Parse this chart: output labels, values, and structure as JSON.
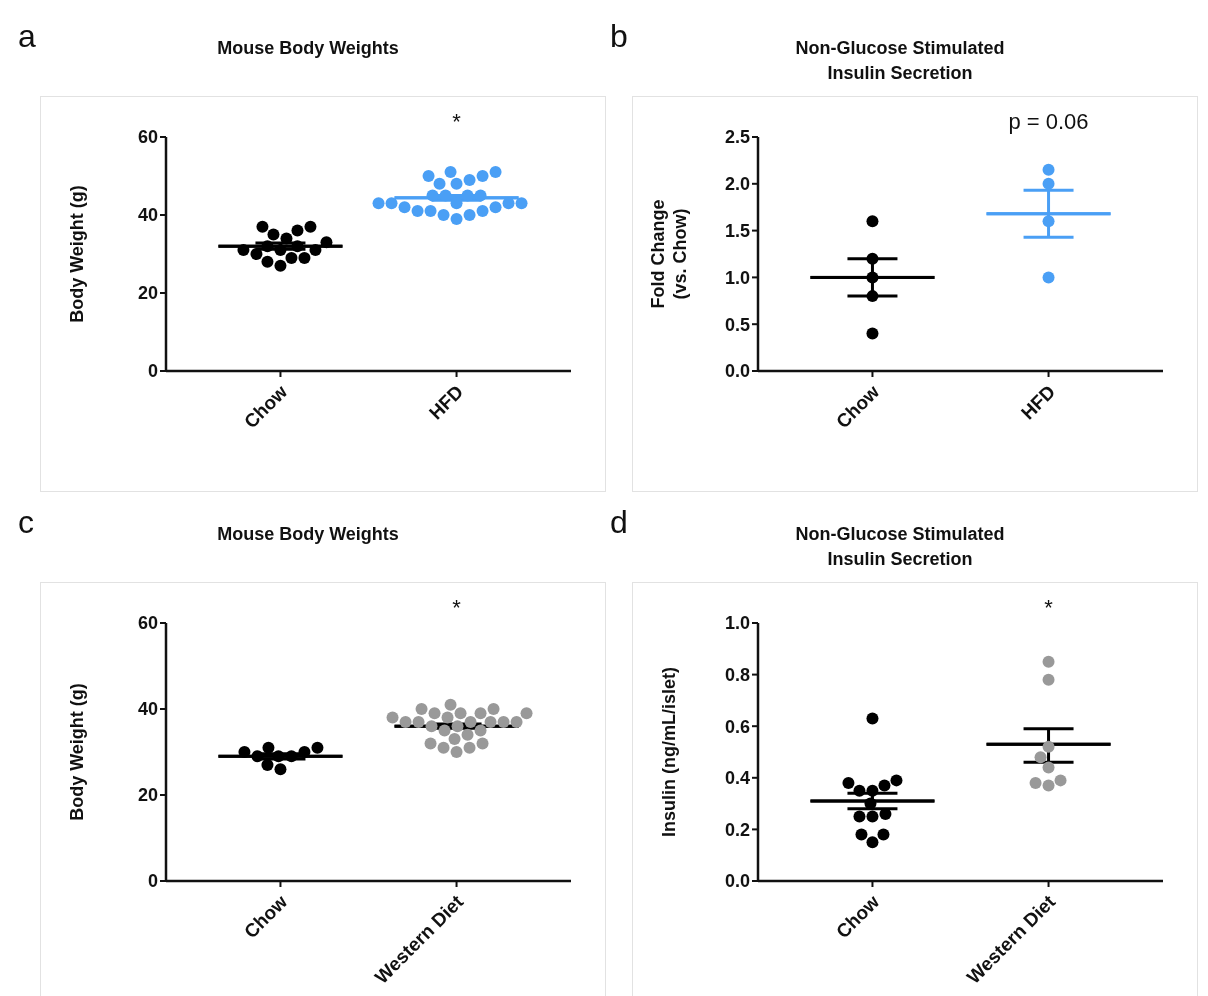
{
  "chart_data": [
    {
      "type": "scatter",
      "title": "Mouse Body Weights",
      "ylabel": "Body Weight (g)",
      "categories": [
        "Chow",
        "HFD"
      ],
      "ylim": [
        0,
        60
      ],
      "yticks": [
        0,
        20,
        40,
        60
      ],
      "series": [
        {
          "type": "box",
          "colors": [
            "#000000",
            "#4a9ff5"
          ],
          "boxes": [
            {
              "low": 31.2,
              "q1": 32,
              "median": 32,
              "q3": 32,
              "high": 32.8
            },
            {
              "low": 43.8,
              "q1": 44.4,
              "median": 44.4,
              "q3": 44.4,
              "high": 45
            }
          ]
        },
        {
          "marker": "circle",
          "color": "#000000",
          "x": [
            "Chow",
            "Chow",
            "Chow",
            "Chow",
            "Chow",
            "Chow",
            "Chow",
            "Chow",
            "Chow",
            "Chow",
            "Chow",
            "Chow",
            "Chow",
            "Chow",
            "Chow",
            "Chow"
          ],
          "values": [
            33,
            32,
            30,
            31,
            29,
            35,
            31,
            27,
            37,
            36,
            28,
            37,
            31,
            29,
            32,
            34
          ]
        },
        {
          "marker": "circle",
          "color": "#4a9ff5",
          "x": [
            "HFD",
            "HFD",
            "HFD",
            "HFD",
            "HFD",
            "HFD",
            "HFD",
            "HFD",
            "HFD",
            "HFD",
            "HFD",
            "HFD",
            "HFD",
            "HFD",
            "HFD",
            "HFD",
            "HFD",
            "HFD",
            "HFD",
            "HFD",
            "HFD",
            "HFD",
            "HFD",
            "HFD"
          ],
          "values": [
            45,
            45,
            50,
            49,
            48,
            51,
            48,
            50,
            51,
            45,
            45,
            42,
            41,
            43,
            40,
            43,
            39,
            43,
            40,
            43,
            41,
            43,
            41,
            42
          ]
        }
      ],
      "annotations": [
        "a",
        "*"
      ]
    },
    {
      "type": "scatter",
      "title": "Non-Glucose Stimulated\nInsulin Secretion",
      "ylabel": "Fold Change\n(vs. Chow)",
      "categories": [
        "Chow",
        "HFD"
      ],
      "ylim": [
        0,
        2.5
      ],
      "yticks": [
        {
          "value": 0,
          "label": "0.0"
        },
        {
          "value": 0.5,
          "label": "0.5"
        },
        {
          "value": 1,
          "label": "1.0"
        },
        {
          "value": 1.5,
          "label": "1.5"
        },
        {
          "value": 2,
          "label": "2.0"
        },
        {
          "value": 2.5,
          "label": "2.5"
        }
      ],
      "series": [
        {
          "type": "box",
          "colors": [
            "#000000",
            "#4a9ff5"
          ],
          "boxes": [
            {
              "low": 0.8,
              "q1": 1.0,
              "median": 1.0,
              "q3": 1.0,
              "high": 1.2
            },
            {
              "low": 1.43,
              "q1": 1.68,
              "median": 1.68,
              "q3": 1.68,
              "high": 1.93
            }
          ]
        },
        {
          "marker": "circle",
          "color": "#000000",
          "x": [
            "Chow",
            "Chow",
            "Chow",
            "Chow",
            "Chow"
          ],
          "values": [
            1.6,
            1.2,
            1.0,
            0.8,
            0.4
          ]
        },
        {
          "marker": "circle",
          "color": "#4a9ff5",
          "x": [
            "HFD",
            "HFD",
            "HFD",
            "HFD"
          ],
          "values": [
            2.15,
            2.0,
            1.6,
            1.0
          ]
        }
      ],
      "annotations": [
        "b",
        "p = 0.06"
      ]
    },
    {
      "type": "scatter",
      "title": "Mouse Body Weights",
      "ylabel": "Body Weight (g)",
      "categories": [
        "Chow",
        "Western Diet"
      ],
      "ylim": [
        0,
        60
      ],
      "yticks": [
        0,
        20,
        40,
        60
      ],
      "series": [
        {
          "type": "box",
          "colors": [
            "#000000",
            "#000000"
          ],
          "boxes": [
            {
              "low": 28.4,
              "q1": 29,
              "median": 29,
              "q3": 29,
              "high": 29.6
            },
            {
              "low": 35.5,
              "q1": 36,
              "median": 36,
              "q3": 36,
              "high": 36.5
            }
          ]
        },
        {
          "marker": "circle",
          "color": "#000000",
          "x": [
            "Chow",
            "Chow",
            "Chow",
            "Chow",
            "Chow",
            "Chow",
            "Chow",
            "Chow",
            "Chow"
          ],
          "values": [
            31,
            29,
            30,
            26,
            27,
            30,
            29,
            31,
            29
          ]
        },
        {
          "marker": "circle",
          "color": "#999999",
          "x": [
            "Western Diet",
            "Western Diet",
            "Western Diet",
            "Western Diet",
            "Western Diet",
            "Western Diet",
            "Western Diet",
            "Western Diet",
            "Western Diet",
            "Western Diet",
            "Western Diet",
            "Western Diet",
            "Western Diet",
            "Western Diet",
            "Western Diet",
            "Western Diet",
            "Western Diet",
            "Western Diet",
            "Western Diet",
            "Western Diet",
            "Western Diet",
            "Western Diet",
            "Western Diet",
            "Western Diet",
            "Western Diet",
            "Western Diet"
          ],
          "values": [
            41,
            40,
            39,
            39,
            38,
            38,
            39,
            39,
            40,
            37,
            37,
            37,
            37,
            37,
            37,
            36,
            35,
            34,
            35,
            36,
            32,
            31,
            30,
            31,
            32,
            33
          ]
        }
      ],
      "annotations": [
        "c",
        "*"
      ]
    },
    {
      "type": "scatter",
      "title": "Non-Glucose Stimulated\nInsulin Secretion",
      "ylabel": "Insulin (ng/mL/islet)",
      "categories": [
        "Chow",
        "Western Diet"
      ],
      "ylim": [
        0,
        1
      ],
      "yticks": [
        {
          "value": 0,
          "label": "0.0"
        },
        {
          "value": 0.2,
          "label": "0.2"
        },
        {
          "value": 0.4,
          "label": "0.4"
        },
        {
          "value": 0.6,
          "label": "0.6"
        },
        {
          "value": 0.8,
          "label": "0.8"
        },
        {
          "value": 1,
          "label": "1.0"
        }
      ],
      "series": [
        {
          "type": "box",
          "colors": [
            "#000000",
            "#000000"
          ],
          "boxes": [
            {
              "low": 0.28,
              "q1": 0.31,
              "median": 0.31,
              "q3": 0.31,
              "high": 0.34
            },
            {
              "low": 0.46,
              "q1": 0.53,
              "median": 0.53,
              "q3": 0.53,
              "high": 0.59
            }
          ]
        },
        {
          "marker": "circle",
          "color": "#000000",
          "x": [
            "Chow",
            "Chow",
            "Chow",
            "Chow",
            "Chow",
            "Chow",
            "Chow",
            "Chow",
            "Chow",
            "Chow",
            "Chow",
            "Chow",
            "Chow"
          ],
          "values": [
            0.63,
            0.39,
            0.37,
            0.35,
            0.35,
            0.38,
            0.3,
            0.25,
            0.25,
            0.26,
            0.18,
            0.15,
            0.18
          ]
        },
        {
          "marker": "circle",
          "color": "#999999",
          "x": [
            "Western Diet",
            "Western Diet",
            "Western Diet",
            "Western Diet",
            "Western Diet",
            "Western Diet",
            "Western Diet",
            "Western Diet"
          ],
          "values": [
            0.85,
            0.78,
            0.52,
            0.48,
            0.44,
            0.39,
            0.37,
            0.38
          ]
        }
      ],
      "annotations": [
        "d",
        "*"
      ]
    }
  ]
}
